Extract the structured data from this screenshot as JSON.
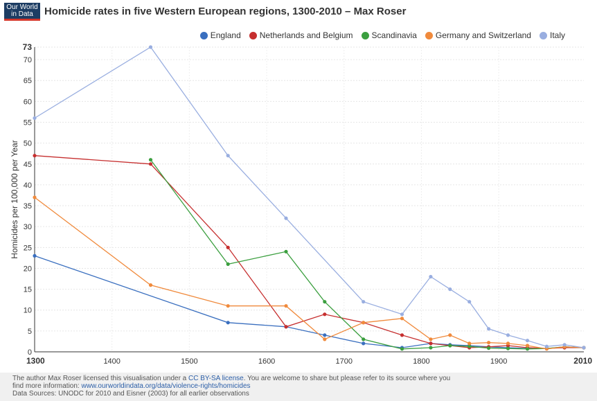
{
  "header": {
    "logo_line1": "Our World",
    "logo_line2": "in Data",
    "title": "Homicide rates in five Western European regions, 1300-2010 – Max Roser"
  },
  "colors": {
    "England": "#3a6fbf",
    "Netherlands and Belgium": "#c62f2f",
    "Scandinavia": "#3b9f3f",
    "Germany and Switzerland": "#f08a3c",
    "Italy": "#99aee0",
    "footer_bg": "#f0f0f0",
    "link": "#2b5ea7"
  },
  "footer": {
    "line1_pre": "The author Max Roser licensed this visualisation under a ",
    "license_link": "CC BY-SA license",
    "line1_post": ". You are welcome to share but please refer to its source where you",
    "line2_pre": "find more information: ",
    "source_link": "www.ourworldindata.org/data/violence-rights/homicides",
    "line3": "Data Sources: UNODC for 2010 and Eisner (2003) for all earlier observations"
  },
  "chart_data": {
    "type": "line",
    "title": "Homicide rates in five Western European regions, 1300-2010 – Max Roser",
    "xlabel": "",
    "ylabel": "Homicides per 100,000 per Year",
    "xlim": [
      1300,
      2010
    ],
    "ylim": [
      0,
      73
    ],
    "x_ticks": [
      "1300",
      "1400",
      "1500",
      "1600",
      "1700",
      "1800",
      "1900",
      "2010"
    ],
    "y_ticks": [
      "0",
      "5",
      "10",
      "15",
      "20",
      "25",
      "30",
      "35",
      "40",
      "45",
      "50",
      "55",
      "60",
      "65",
      "70",
      "73"
    ],
    "grid": true,
    "legend_position": "top-right",
    "series": [
      {
        "name": "England",
        "points": [
          [
            1300,
            23
          ],
          [
            1550,
            7
          ],
          [
            1625,
            6
          ],
          [
            1675,
            4
          ],
          [
            1725,
            2
          ],
          [
            1775,
            1
          ],
          [
            1812,
            2
          ],
          [
            1837,
            1.7
          ],
          [
            1862,
            1.5
          ],
          [
            1887,
            1.2
          ],
          [
            1912,
            1
          ],
          [
            1937,
            0.8
          ],
          [
            1962,
            0.8
          ],
          [
            1985,
            1.2
          ],
          [
            2010,
            1
          ]
        ]
      },
      {
        "name": "Netherlands and Belgium",
        "points": [
          [
            1300,
            47
          ],
          [
            1450,
            45
          ],
          [
            1550,
            25
          ],
          [
            1625,
            6
          ],
          [
            1675,
            9
          ],
          [
            1725,
            7
          ],
          [
            1775,
            4
          ],
          [
            1812,
            2
          ],
          [
            1837,
            1.5
          ],
          [
            1862,
            1
          ],
          [
            1887,
            1.2
          ],
          [
            1912,
            1.5
          ],
          [
            1937,
            1
          ],
          [
            1962,
            0.8
          ],
          [
            1985,
            1
          ],
          [
            2010,
            1
          ]
        ]
      },
      {
        "name": "Scandinavia",
        "points": [
          [
            1450,
            46
          ],
          [
            1550,
            21
          ],
          [
            1625,
            24
          ],
          [
            1675,
            12
          ],
          [
            1725,
            3
          ],
          [
            1775,
            0.7
          ],
          [
            1812,
            1
          ],
          [
            1837,
            1.5
          ],
          [
            1862,
            1.3
          ],
          [
            1887,
            0.9
          ],
          [
            1912,
            0.8
          ],
          [
            1937,
            0.7
          ],
          [
            1962,
            0.8
          ],
          [
            1985,
            1.2
          ],
          [
            2010,
            1
          ]
        ]
      },
      {
        "name": "Germany and Switzerland",
        "points": [
          [
            1300,
            37
          ],
          [
            1450,
            16
          ],
          [
            1550,
            11
          ],
          [
            1625,
            11
          ],
          [
            1675,
            3
          ],
          [
            1725,
            7
          ],
          [
            1775,
            8
          ],
          [
            1812,
            3
          ],
          [
            1837,
            4
          ],
          [
            1862,
            2
          ],
          [
            1887,
            2.2
          ],
          [
            1912,
            2
          ],
          [
            1937,
            1.5
          ],
          [
            1962,
            0.7
          ],
          [
            1985,
            1.2
          ],
          [
            2010,
            1
          ]
        ]
      },
      {
        "name": "Italy",
        "points": [
          [
            1300,
            56
          ],
          [
            1450,
            73
          ],
          [
            1550,
            47
          ],
          [
            1625,
            32
          ],
          [
            1725,
            12
          ],
          [
            1775,
            9
          ],
          [
            1812,
            18
          ],
          [
            1837,
            15
          ],
          [
            1862,
            12
          ],
          [
            1887,
            5.5
          ],
          [
            1912,
            4
          ],
          [
            1937,
            2.7
          ],
          [
            1962,
            1.3
          ],
          [
            1985,
            1.7
          ],
          [
            2010,
            1
          ]
        ]
      }
    ]
  }
}
